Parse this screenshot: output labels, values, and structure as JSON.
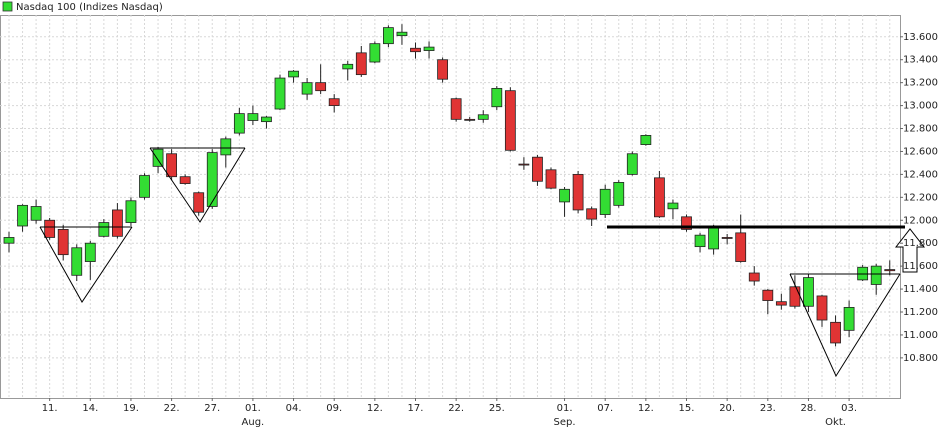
{
  "chart_data": {
    "type": "candlestick",
    "legend": "Nasdaq 100 (Indizes Nasdaq)",
    "legend_color": "#33dd33",
    "up_color": "#33dd33",
    "down_color": "#e03434",
    "grid": true,
    "ylim": [
      10450,
      13790
    ],
    "yticks": [
      {
        "value": 10800,
        "label": "10.800"
      },
      {
        "value": 11000,
        "label": "11.000"
      },
      {
        "value": 11200,
        "label": "11.200"
      },
      {
        "value": 11400,
        "label": "11.400"
      },
      {
        "value": 11600,
        "label": "11.600"
      },
      {
        "value": 11800,
        "label": "11.800"
      },
      {
        "value": 12000,
        "label": "12.000"
      },
      {
        "value": 12200,
        "label": "12.200"
      },
      {
        "value": 12400,
        "label": "12.400"
      },
      {
        "value": 12600,
        "label": "12.600"
      },
      {
        "value": 12800,
        "label": "12.800"
      },
      {
        "value": 13000,
        "label": "13.000"
      },
      {
        "value": 13200,
        "label": "13.200"
      },
      {
        "value": 13400,
        "label": "13.400"
      },
      {
        "value": 13600,
        "label": "13.600"
      }
    ],
    "categories": [
      null,
      null,
      null,
      "11.",
      null,
      null,
      "14.",
      null,
      null,
      "19.",
      null,
      null,
      "22.",
      null,
      null,
      "27.",
      null,
      null,
      "01.",
      null,
      null,
      "04.",
      null,
      null,
      "09.",
      null,
      null,
      "12.",
      null,
      null,
      "17.",
      null,
      null,
      "22.",
      null,
      null,
      "25.",
      null,
      null,
      null,
      null,
      "01.",
      null,
      null,
      "07.",
      null,
      null,
      "12.",
      null,
      null,
      "15.",
      null,
      null,
      "20.",
      null,
      null,
      "23.",
      null,
      null,
      "28.",
      null,
      null,
      "03.",
      null,
      null,
      null
    ],
    "months": [
      null,
      null,
      null,
      null,
      null,
      null,
      null,
      null,
      null,
      null,
      null,
      null,
      null,
      null,
      null,
      null,
      null,
      null,
      "Aug.",
      null,
      null,
      null,
      null,
      null,
      null,
      null,
      null,
      null,
      null,
      null,
      null,
      null,
      null,
      null,
      null,
      null,
      null,
      null,
      null,
      null,
      null,
      "Sep.",
      null,
      null,
      null,
      null,
      null,
      null,
      null,
      null,
      null,
      null,
      null,
      null,
      null,
      null,
      null,
      null,
      null,
      null,
      null,
      "Okt.",
      null,
      null,
      null
    ],
    "series": [
      {
        "name": "Nasdaq 100 (Indizes Nasdaq)",
        "open": [
          11800,
          11950,
          12000,
          12000,
          11920,
          11520,
          11640,
          11860,
          12090,
          11980,
          12200,
          12470,
          12580,
          12380,
          12240,
          12120,
          12570,
          12760,
          12870,
          12860,
          12970,
          13250,
          13100,
          13200,
          13060,
          13320,
          13460,
          13380,
          13540,
          13610,
          13500,
          13480,
          13400,
          13060,
          12880,
          12880,
          12990,
          13130,
          12490,
          12550,
          12440,
          12160,
          12400,
          12100,
          12050,
          12130,
          12400,
          12660,
          12370,
          12100,
          12030,
          11770,
          11750,
          11850,
          11890,
          11540,
          11390,
          11290,
          11420,
          11250,
          11340,
          11110,
          11040,
          11480,
          11440,
          11570
        ],
        "high": [
          11900,
          12140,
          12180,
          12020,
          11960,
          11790,
          11820,
          12010,
          12150,
          12200,
          12410,
          12640,
          12620,
          12400,
          12250,
          12620,
          12730,
          12980,
          13000,
          12910,
          13270,
          13310,
          13240,
          13360,
          13100,
          13390,
          13520,
          13560,
          13700,
          13710,
          13550,
          13560,
          13420,
          13070,
          12900,
          12960,
          13170,
          13160,
          12550,
          12570,
          12460,
          12290,
          12430,
          12120,
          12310,
          12350,
          12600,
          12750,
          12430,
          12180,
          12050,
          11890,
          11960,
          11880,
          12050,
          11600,
          11400,
          11360,
          11520,
          11530,
          11350,
          11170,
          11300,
          11610,
          11620,
          11650
        ],
        "low": [
          11720,
          11900,
          11970,
          11830,
          11650,
          11470,
          11480,
          11850,
          11840,
          11950,
          12180,
          12410,
          12350,
          12310,
          12040,
          12100,
          12460,
          12740,
          12830,
          12800,
          12960,
          13200,
          13050,
          13100,
          12940,
          13220,
          13250,
          13370,
          13510,
          13530,
          13410,
          13410,
          13200,
          12860,
          12860,
          12850,
          12960,
          12600,
          12440,
          12300,
          12270,
          12030,
          12060,
          11950,
          12020,
          12110,
          12390,
          12650,
          12020,
          12010,
          11900,
          11720,
          11700,
          11790,
          11630,
          11430,
          11180,
          11220,
          11230,
          11200,
          11070,
          10900,
          10980,
          11470,
          11350,
          11520
        ],
        "close": [
          11850,
          12130,
          12120,
          11850,
          11700,
          11760,
          11800,
          11980,
          11860,
          12170,
          12390,
          12620,
          12380,
          12320,
          12070,
          12590,
          12710,
          12930,
          12930,
          12900,
          13240,
          13300,
          13200,
          13130,
          13000,
          13360,
          13270,
          13540,
          13680,
          13640,
          13470,
          13510,
          13230,
          12880,
          12875,
          12920,
          13150,
          12610,
          12485,
          12340,
          12280,
          12270,
          12090,
          12010,
          12270,
          12330,
          12580,
          12740,
          12030,
          12150,
          11920,
          11870,
          11950,
          11845,
          11640,
          11470,
          11300,
          11260,
          11250,
          11500,
          11130,
          10930,
          11240,
          11590,
          11600,
          11560
        ]
      }
    ]
  }
}
